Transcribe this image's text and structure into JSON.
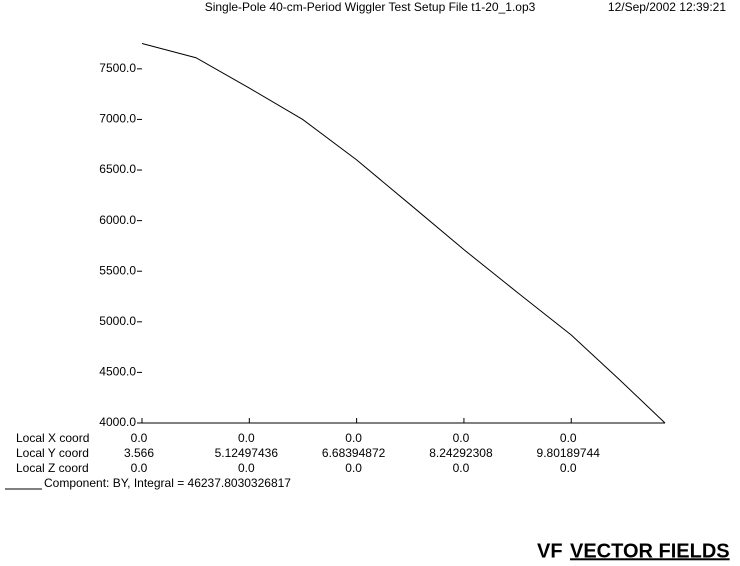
{
  "chart_data": {
    "type": "line",
    "title": "Single-Pole 40-cm-Period Wiggler Test Setup   File t1-20_1.op3",
    "date": "12/Sep/2002 12:39:21",
    "x": [
      3.566,
      4.35,
      5.12497436,
      5.9,
      6.68394872,
      7.46,
      8.24292308,
      9.02,
      9.80189744,
      10.5,
      11.164
    ],
    "series": [
      {
        "name": "Component:  BY, Integral = 46237.8030326817",
        "color": "#000000",
        "values": [
          7750,
          7610,
          7310,
          7000,
          6600,
          6160,
          5713,
          5290,
          4870,
          4430,
          4000
        ]
      }
    ],
    "xlim": [
      3.566,
      11.164
    ],
    "xticks": [
      3.566,
      5.12497436,
      6.68394872,
      8.24292308,
      9.80189744
    ],
    "x_axis_label": "Local Y coord",
    "other_rows": [
      {
        "label": "Local X coord",
        "values": [
          "0.0",
          "0.0",
          "0.0",
          "0.0",
          "0.0"
        ]
      },
      {
        "label": "Local Z coord",
        "values": [
          "0.0",
          "0.0",
          "0.0",
          "0.0",
          "0.0"
        ]
      }
    ],
    "ylim": [
      4000,
      7785
    ],
    "yticks": [
      {
        "value": 4000,
        "label": "4000.0"
      },
      {
        "value": 4500,
        "label": "4500.0"
      },
      {
        "value": 5000,
        "label": "5000.0"
      },
      {
        "value": 5500,
        "label": "5500.0"
      },
      {
        "value": 6000,
        "label": "6000.0"
      },
      {
        "value": 6500,
        "label": "6500.0"
      },
      {
        "value": 7000,
        "label": "7000.0"
      },
      {
        "value": 7500,
        "label": "7500.0"
      }
    ]
  },
  "logo_mark": "VF",
  "logo": "VECTOR FIELDS"
}
